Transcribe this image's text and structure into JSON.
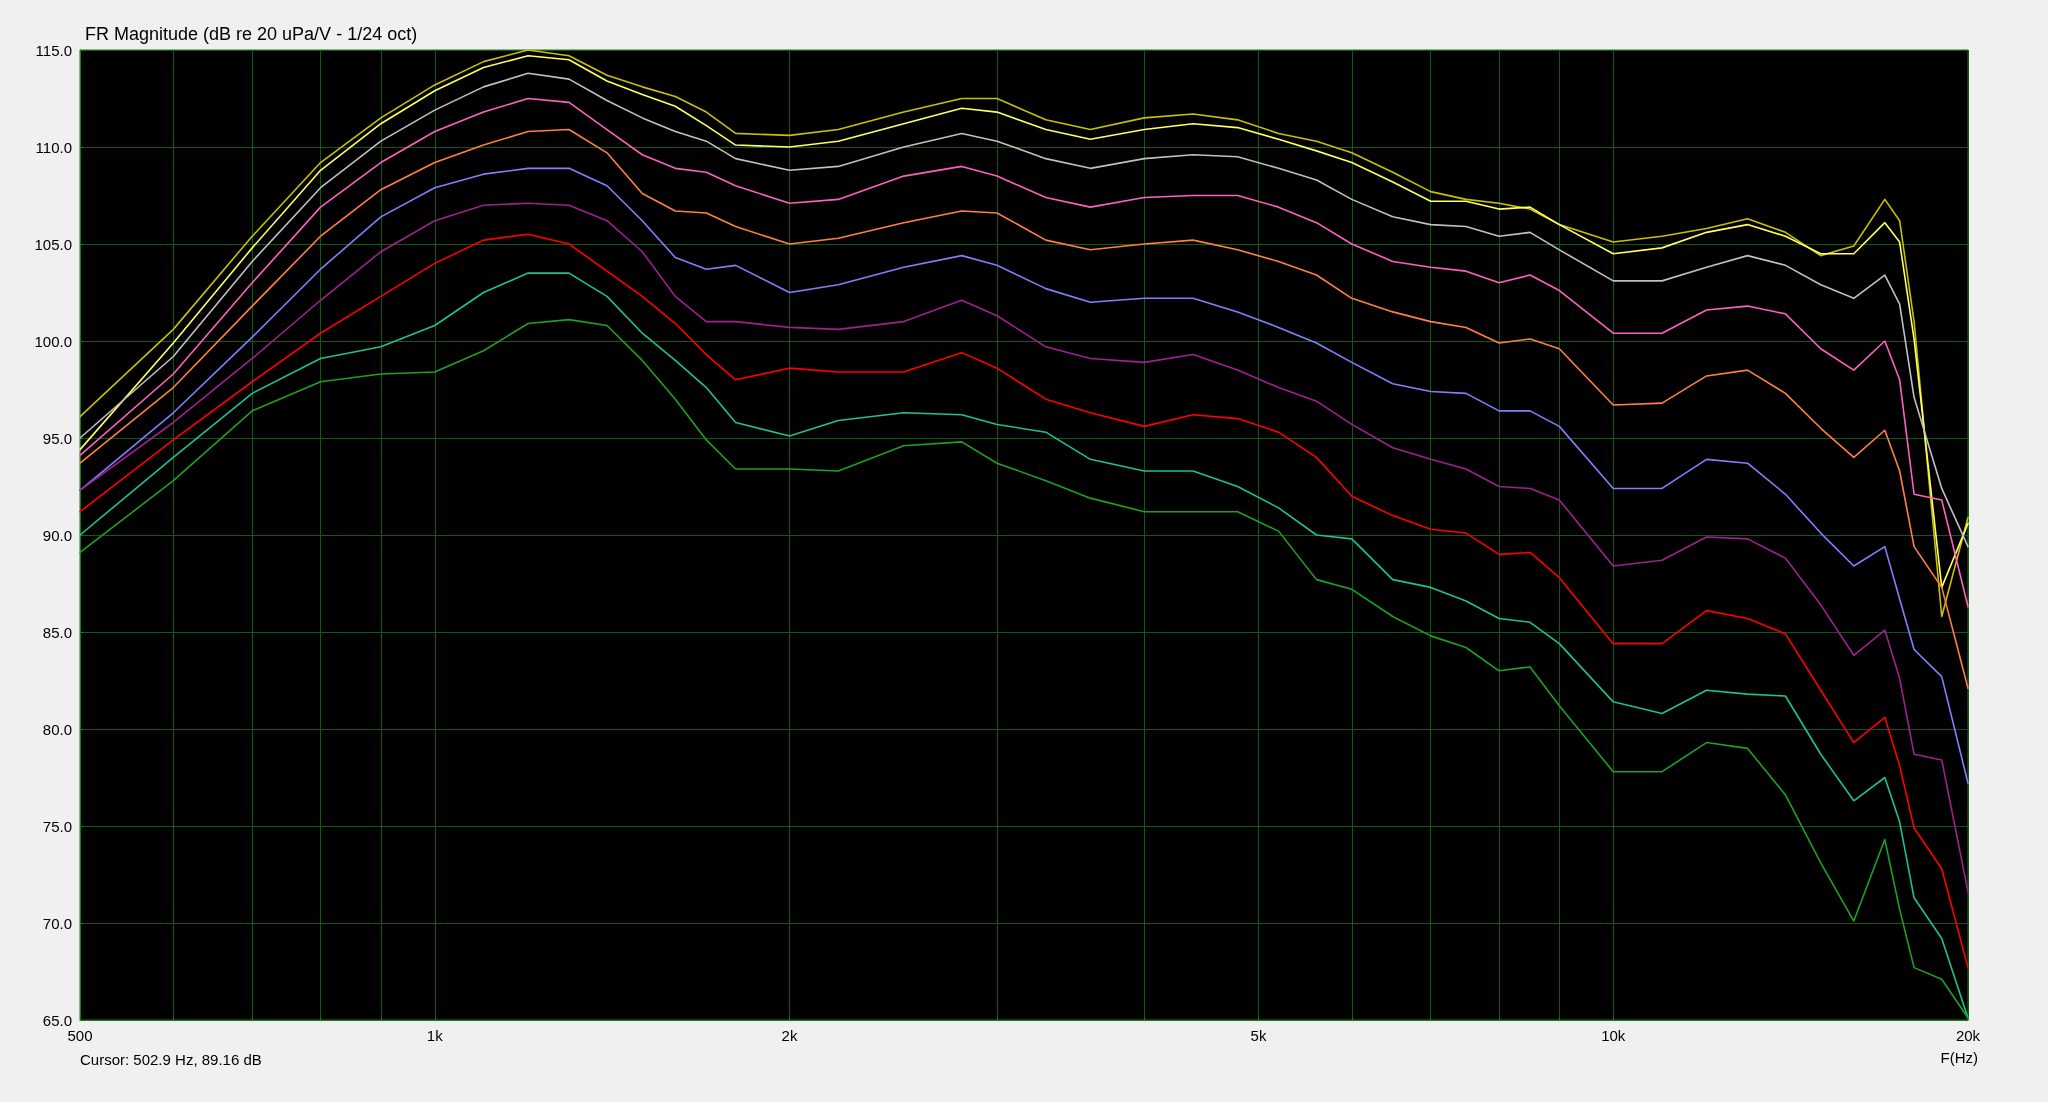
{
  "chart_data": {
    "type": "line",
    "title": "FR Magnitude (dB re 20 uPa/V - 1/24 oct)",
    "xlabel": "F(Hz)",
    "annotations": [
      "Cursor: 502.9 Hz, 89.16 dB"
    ],
    "log": "x",
    "grid": true,
    "marker": "none",
    "line_style": "solid",
    "xlim": [
      500,
      20000
    ],
    "xticks": [
      {
        "value": 500,
        "label": "500"
      },
      {
        "value": 600,
        "label": null
      },
      {
        "value": 700,
        "label": null
      },
      {
        "value": 800,
        "label": null
      },
      {
        "value": 900,
        "label": null
      },
      {
        "value": 1000,
        "label": "1k"
      },
      {
        "value": 2000,
        "label": "2k"
      },
      {
        "value": 3000,
        "label": null
      },
      {
        "value": 4000,
        "label": null
      },
      {
        "value": 5000,
        "label": "5k"
      },
      {
        "value": 6000,
        "label": null
      },
      {
        "value": 7000,
        "label": null
      },
      {
        "value": 8000,
        "label": null
      },
      {
        "value": 9000,
        "label": null
      },
      {
        "value": 10000,
        "label": "10k"
      },
      {
        "value": 20000,
        "label": "20k"
      }
    ],
    "ylim": [
      65,
      115
    ],
    "yticks": [
      {
        "value": 65,
        "label": "65.0"
      },
      {
        "value": 70,
        "label": "70.0"
      },
      {
        "value": 75,
        "label": "75.0"
      },
      {
        "value": 80,
        "label": "80.0"
      },
      {
        "value": 85,
        "label": "85.0"
      },
      {
        "value": 90,
        "label": "90.0"
      },
      {
        "value": 95,
        "label": "95.0"
      },
      {
        "value": 100,
        "label": "100.0"
      },
      {
        "value": 105,
        "label": "105.0"
      },
      {
        "value": 110,
        "label": "110.0"
      },
      {
        "value": 115,
        "label": "115.0"
      }
    ],
    "x": [
      500,
      600,
      700,
      800,
      900,
      1000,
      1100,
      1200,
      1300,
      1400,
      1500,
      1600,
      1700,
      1800,
      2000,
      2200,
      2500,
      2800,
      3000,
      3300,
      3600,
      4000,
      4400,
      4800,
      5200,
      5600,
      6000,
      6500,
      7000,
      7500,
      8000,
      8500,
      9000,
      10000,
      11000,
      12000,
      13000,
      14000,
      15000,
      16000,
      17000,
      17500,
      18000,
      19000,
      20000
    ],
    "series": [
      {
        "color": "#c8c000",
        "values": [
          96.1,
          100.6,
          105.4,
          109.2,
          111.5,
          113.2,
          114.4,
          115.0,
          114.7,
          113.7,
          113.1,
          112.6,
          111.8,
          110.7,
          110.6,
          110.9,
          111.8,
          112.5,
          112.5,
          111.4,
          110.9,
          111.5,
          111.7,
          111.4,
          110.7,
          110.3,
          109.7,
          108.7,
          107.7,
          107.3,
          107.1,
          106.8,
          106.0,
          105.1,
          105.4,
          105.8,
          106.3,
          105.6,
          104.4,
          104.9,
          107.3,
          106.2,
          101.0,
          85.8,
          90.9
        ]
      },
      {
        "color": "#ffff60",
        "values": [
          94.4,
          99.9,
          104.8,
          108.8,
          111.2,
          112.9,
          114.1,
          114.7,
          114.5,
          113.4,
          112.7,
          112.1,
          111.1,
          110.1,
          110.0,
          110.3,
          111.2,
          112.0,
          111.8,
          110.9,
          110.4,
          110.9,
          111.2,
          111.0,
          110.4,
          109.8,
          109.2,
          108.2,
          107.2,
          107.2,
          106.8,
          106.9,
          106.0,
          104.5,
          104.8,
          105.6,
          106.0,
          105.4,
          104.5,
          104.5,
          106.1,
          105.1,
          100.1,
          87.3,
          90.6
        ]
      },
      {
        "color": "#c0c0c0",
        "values": [
          95.0,
          99.2,
          104.1,
          107.9,
          110.3,
          111.9,
          113.1,
          113.8,
          113.5,
          112.4,
          111.5,
          110.8,
          110.3,
          109.4,
          108.8,
          109.0,
          110.0,
          110.7,
          110.3,
          109.4,
          108.9,
          109.4,
          109.6,
          109.5,
          108.9,
          108.3,
          107.3,
          106.4,
          106.0,
          105.9,
          105.4,
          105.6,
          104.7,
          103.1,
          103.1,
          103.8,
          104.4,
          103.9,
          102.9,
          102.2,
          103.4,
          101.9,
          97.1,
          92.4,
          89.4
        ]
      },
      {
        "color": "#ff60c0",
        "values": [
          94.1,
          98.3,
          103.0,
          106.9,
          109.2,
          110.8,
          111.8,
          112.5,
          112.3,
          110.9,
          109.6,
          108.9,
          108.7,
          108.0,
          107.1,
          107.3,
          108.5,
          109.0,
          108.5,
          107.4,
          106.9,
          107.4,
          107.5,
          107.5,
          106.9,
          106.1,
          105.0,
          104.1,
          103.8,
          103.6,
          103.0,
          103.4,
          102.6,
          100.4,
          100.4,
          101.6,
          101.8,
          101.4,
          99.6,
          98.5,
          100.0,
          98.0,
          92.1,
          91.8,
          86.3
        ]
      },
      {
        "color": "#ff8040",
        "values": [
          93.7,
          97.6,
          101.8,
          105.4,
          107.8,
          109.2,
          110.1,
          110.8,
          110.9,
          109.7,
          107.6,
          106.7,
          106.6,
          105.9,
          105.0,
          105.3,
          106.1,
          106.7,
          106.6,
          105.2,
          104.7,
          105.0,
          105.2,
          104.7,
          104.1,
          103.4,
          102.2,
          101.5,
          101.0,
          100.7,
          99.9,
          100.1,
          99.6,
          96.7,
          96.8,
          98.2,
          98.5,
          97.3,
          95.5,
          94.0,
          95.4,
          93.3,
          89.4,
          87.3,
          82.1
        ]
      },
      {
        "color": "#8080ff",
        "values": [
          92.3,
          96.3,
          100.2,
          103.7,
          106.4,
          107.9,
          108.6,
          108.9,
          108.9,
          108.0,
          106.2,
          104.3,
          103.7,
          103.9,
          102.5,
          102.9,
          103.8,
          104.4,
          103.9,
          102.7,
          102.0,
          102.2,
          102.2,
          101.5,
          100.7,
          99.9,
          98.9,
          97.8,
          97.4,
          97.3,
          96.4,
          96.4,
          95.6,
          92.4,
          92.4,
          93.9,
          93.7,
          92.1,
          90.1,
          88.4,
          89.4,
          86.7,
          84.1,
          82.7,
          77.2
        ]
      },
      {
        "color": "#a02090",
        "values": [
          92.3,
          95.8,
          99.1,
          102.1,
          104.6,
          106.2,
          107.0,
          107.1,
          107.0,
          106.2,
          104.6,
          102.3,
          101.0,
          101.0,
          100.7,
          100.6,
          101.0,
          102.1,
          101.3,
          99.7,
          99.1,
          98.9,
          99.3,
          98.5,
          97.6,
          96.9,
          95.7,
          94.5,
          93.9,
          93.4,
          92.5,
          92.4,
          91.8,
          88.4,
          88.7,
          89.9,
          89.8,
          88.8,
          86.4,
          83.8,
          85.1,
          82.6,
          78.7,
          78.4,
          71.6
        ]
      },
      {
        "color": "#ff0000",
        "values": [
          91.2,
          94.9,
          97.9,
          100.4,
          102.3,
          104.0,
          105.2,
          105.5,
          105.0,
          103.6,
          102.3,
          100.9,
          99.3,
          98.0,
          98.6,
          98.4,
          98.4,
          99.4,
          98.6,
          97.0,
          96.3,
          95.6,
          96.2,
          96.0,
          95.3,
          94.0,
          92.0,
          91.0,
          90.3,
          90.1,
          89.0,
          89.1,
          87.8,
          84.4,
          84.4,
          86.1,
          85.7,
          84.9,
          82.0,
          79.3,
          80.6,
          78.1,
          74.9,
          72.8,
          67.7
        ]
      },
      {
        "color": "#20c090",
        "values": [
          90.0,
          94.0,
          97.3,
          99.1,
          99.7,
          100.8,
          102.5,
          103.5,
          103.5,
          102.3,
          100.4,
          99.0,
          97.6,
          95.8,
          95.1,
          95.9,
          96.3,
          96.2,
          95.7,
          95.3,
          93.9,
          93.3,
          93.3,
          92.5,
          91.4,
          90.0,
          89.8,
          87.7,
          87.3,
          86.6,
          85.7,
          85.5,
          84.4,
          81.4,
          80.8,
          82.0,
          81.8,
          81.7,
          78.7,
          76.3,
          77.5,
          75.2,
          71.3,
          69.2,
          65.1
        ]
      },
      {
        "color": "#20a020",
        "values": [
          89.1,
          92.8,
          96.4,
          97.9,
          98.3,
          98.4,
          99.5,
          100.9,
          101.1,
          100.8,
          99.0,
          97.0,
          94.9,
          93.4,
          93.4,
          93.3,
          94.6,
          94.8,
          93.7,
          92.8,
          91.9,
          91.2,
          91.2,
          91.2,
          90.2,
          87.7,
          87.2,
          85.8,
          84.8,
          84.2,
          83.0,
          83.2,
          81.2,
          77.8,
          77.8,
          79.3,
          79.0,
          76.6,
          73.1,
          70.1,
          74.3,
          70.7,
          67.7,
          67.1,
          65.1
        ]
      }
    ]
  }
}
